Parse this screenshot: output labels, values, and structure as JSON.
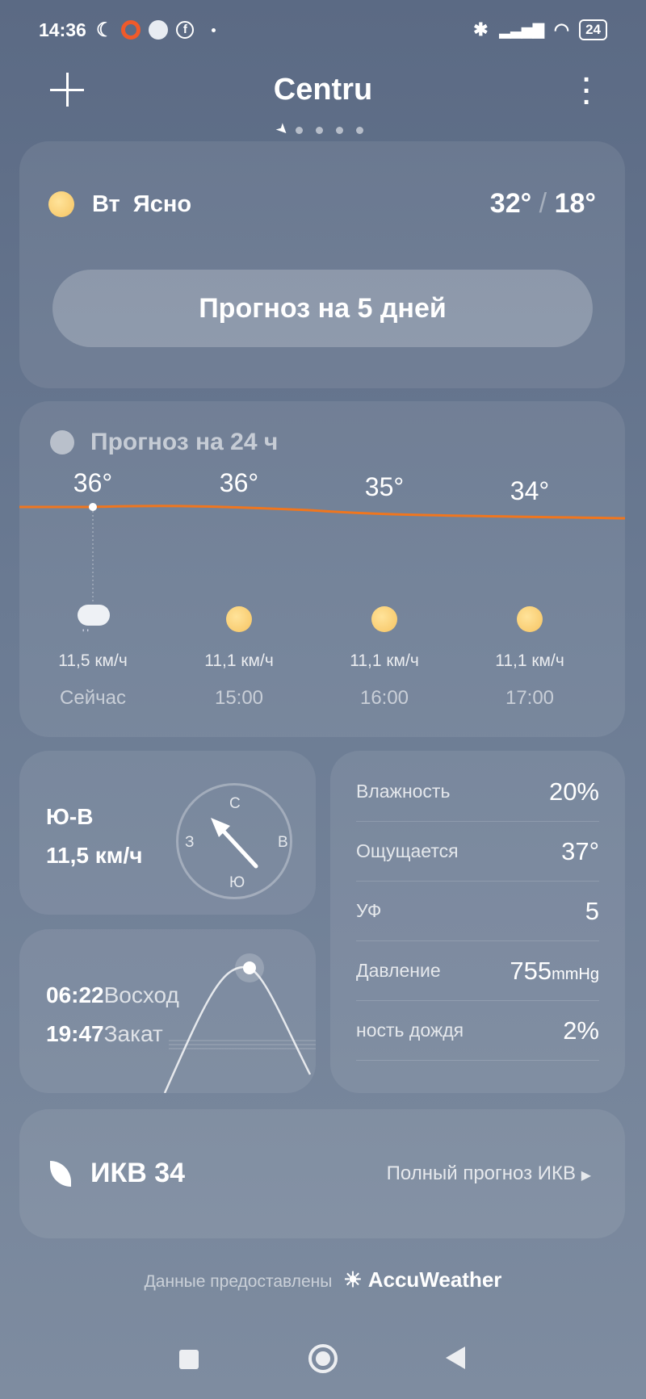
{
  "status": {
    "time": "14:36",
    "battery": "24",
    "icons": [
      "moon-icon",
      "opera-icon",
      "planet-icon",
      "facebook-icon",
      "bluetooth-icon",
      "signal-icon",
      "wifi-icon",
      "battery-icon"
    ]
  },
  "header": {
    "title": "Centru",
    "add_icon": "plus-icon",
    "menu_icon": "more-vertical-icon",
    "page_count": 5,
    "active_page": 0
  },
  "today": {
    "day": "Вт",
    "condition": "Ясно",
    "high": "32°",
    "low": "18°",
    "sep": "/",
    "forecast_button": "Прогноз на 5 дней"
  },
  "hourly": {
    "title": "Прогноз на 24 ч",
    "line_color": "#f0761e",
    "items": [
      {
        "temp": "36°",
        "icon": "cloud-rain-icon",
        "wind": "11,5 км/ч",
        "time": "Сейчас"
      },
      {
        "temp": "36°",
        "icon": "sun-icon",
        "wind": "11,1 км/ч",
        "time": "15:00"
      },
      {
        "temp": "35°",
        "icon": "sun-icon",
        "wind": "11,1 км/ч",
        "time": "16:00"
      },
      {
        "temp": "34°",
        "icon": "sun-icon",
        "wind": "11,1 км/ч",
        "time": "17:00"
      }
    ]
  },
  "wind": {
    "direction": "Ю-В",
    "speed": "11,5 км/ч",
    "compass": {
      "n": "С",
      "s": "Ю",
      "w": "З",
      "e": "В"
    }
  },
  "sun": {
    "sunrise": "06:22",
    "sunrise_label": "Восход",
    "sunset": "19:47",
    "sunset_label": "Закат"
  },
  "details": [
    {
      "label": "Влажность",
      "value": "20%"
    },
    {
      "label": "Ощущается",
      "value": "37°"
    },
    {
      "label": "УФ",
      "value": "5"
    },
    {
      "label": "Давление",
      "value": "755",
      "unit": "mmHg"
    },
    {
      "label": "ность дождя",
      "value": "2%"
    }
  ],
  "aqi": {
    "label": "ИКВ 34",
    "link": "Полный прогноз ИКВ"
  },
  "footer": {
    "text": "Данные предоставлены",
    "brand": "AccuWeather"
  }
}
